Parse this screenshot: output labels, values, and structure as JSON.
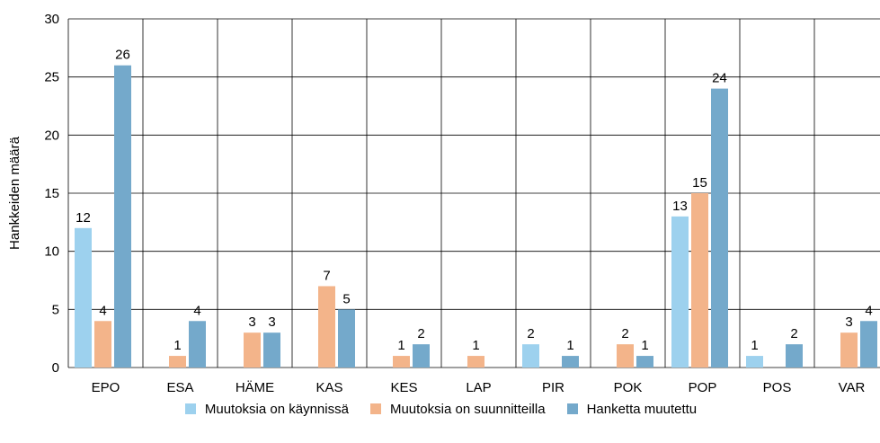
{
  "chart_data": {
    "type": "bar",
    "categories": [
      "EPO",
      "ESA",
      "HÄME",
      "KAS",
      "KES",
      "LAP",
      "PIR",
      "POK",
      "POP",
      "POS",
      "VAR"
    ],
    "series": [
      {
        "name": "Muutoksia on käynnissä",
        "color": "#9dd1ee",
        "values": [
          12,
          0,
          0,
          0,
          0,
          0,
          2,
          0,
          13,
          1,
          0
        ]
      },
      {
        "name": "Muutoksia on suunnitteilla",
        "color": "#f3b48a",
        "values": [
          4,
          1,
          3,
          7,
          1,
          1,
          0,
          2,
          15,
          0,
          3
        ]
      },
      {
        "name": "Hanketta muutettu",
        "color": "#74a9cb",
        "values": [
          26,
          4,
          3,
          5,
          2,
          0,
          1,
          1,
          24,
          2,
          4
        ]
      }
    ],
    "ylabel": "Hankkeiden määrä",
    "ylim": [
      0,
      30
    ],
    "yticks": [
      0,
      5,
      10,
      15,
      20,
      25,
      30
    ],
    "grid": true,
    "legend": "bottom"
  }
}
